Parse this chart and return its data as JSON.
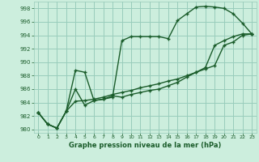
{
  "title": "Graphe pression niveau de la mer (hPa)",
  "bg_color": "#cceedd",
  "grid_color": "#99ccbb",
  "line_color": "#1a5c2a",
  "xlim": [
    -0.5,
    23.5
  ],
  "ylim": [
    979.5,
    999.0
  ],
  "yticks": [
    980,
    982,
    984,
    986,
    988,
    990,
    992,
    994,
    996,
    998
  ],
  "xticks": [
    0,
    1,
    2,
    3,
    4,
    5,
    6,
    7,
    8,
    9,
    10,
    11,
    12,
    13,
    14,
    15,
    16,
    17,
    18,
    19,
    20,
    21,
    22,
    23
  ],
  "line1_x": [
    0,
    1,
    2,
    3,
    4,
    5,
    6,
    7,
    8,
    9,
    10,
    11,
    12,
    13,
    14,
    15,
    16,
    17,
    18,
    19,
    20,
    21,
    22,
    23
  ],
  "line1": [
    982.5,
    980.8,
    980.2,
    982.7,
    988.8,
    988.5,
    984.3,
    984.5,
    984.8,
    993.2,
    993.8,
    993.8,
    993.8,
    993.8,
    993.5,
    996.2,
    997.2,
    998.2,
    998.3,
    998.2,
    998.0,
    997.2,
    995.8,
    994.2
  ],
  "line2_x": [
    0,
    1,
    2,
    3,
    4,
    5,
    6,
    7,
    8,
    9,
    10,
    11,
    12,
    13,
    14,
    15,
    16,
    17,
    18,
    19,
    20,
    21,
    22,
    23
  ],
  "line2": [
    982.5,
    980.8,
    980.2,
    982.7,
    986.0,
    983.6,
    984.3,
    984.5,
    985.0,
    984.8,
    985.2,
    985.5,
    985.8,
    986.0,
    986.5,
    987.0,
    987.8,
    988.5,
    989.2,
    992.5,
    993.2,
    993.8,
    994.2,
    994.2
  ],
  "line3_x": [
    0,
    1,
    2,
    3,
    4,
    5,
    6,
    7,
    8,
    9,
    10,
    11,
    12,
    13,
    14,
    15,
    16,
    17,
    18,
    19,
    20,
    21,
    22,
    23
  ],
  "line3": [
    982.5,
    980.8,
    980.2,
    982.7,
    984.2,
    984.3,
    984.5,
    984.8,
    985.2,
    985.5,
    985.8,
    986.2,
    986.5,
    986.8,
    987.2,
    987.5,
    988.0,
    988.5,
    989.0,
    989.5,
    992.5,
    993.0,
    994.0,
    994.2
  ]
}
